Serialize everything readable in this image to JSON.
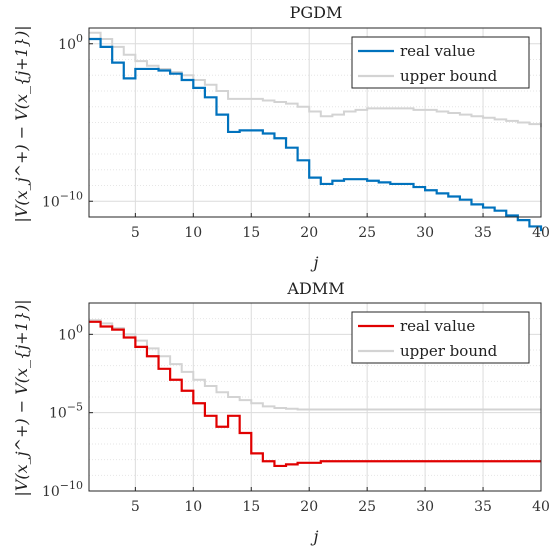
{
  "chart_data": [
    {
      "type": "line",
      "title": "PGDM",
      "xlabel": "j",
      "ylabel": "|V(x_j^+) − V(x_{j+1})|",
      "yscale": "log",
      "xlim": [
        1,
        40
      ],
      "ylim_log10": [
        -11,
        1
      ],
      "x_ticks": [
        5,
        10,
        15,
        20,
        25,
        30,
        35,
        40
      ],
      "y_ticks": [
        {
          "exp": 0,
          "label": "10",
          "sup": "0"
        },
        {
          "exp": -10,
          "label": "10",
          "sup": "−10"
        }
      ],
      "grid": true,
      "legend_position": "top-right",
      "series": [
        {
          "name": "real value",
          "color": "#0072BD",
          "step": true,
          "x": [
            1,
            2,
            3,
            4,
            5,
            6,
            7,
            8,
            9,
            10,
            11,
            12,
            13,
            14,
            15,
            16,
            17,
            18,
            19,
            20,
            21,
            22,
            23,
            24,
            25,
            26,
            27,
            28,
            29,
            30,
            31,
            32,
            33,
            34,
            35,
            36,
            37,
            38,
            39,
            40
          ],
          "log10_y": [
            0.3,
            -0.2,
            -1.2,
            -2.2,
            -1.6,
            -1.6,
            -1.7,
            -1.9,
            -2.3,
            -2.8,
            -3.4,
            -4.5,
            -5.6,
            -5.5,
            -5.5,
            -5.7,
            -6.0,
            -6.6,
            -7.4,
            -8.5,
            -8.9,
            -8.7,
            -8.6,
            -8.6,
            -8.7,
            -8.8,
            -8.9,
            -8.9,
            -9.1,
            -9.3,
            -9.5,
            -9.7,
            -9.9,
            -10.2,
            -10.4,
            -10.6,
            -10.9,
            -11.2,
            -11.6,
            -11.9
          ]
        },
        {
          "name": "upper bound",
          "color": "#D3D3D3",
          "step": true,
          "x": [
            1,
            2,
            3,
            4,
            5,
            6,
            7,
            8,
            9,
            10,
            11,
            12,
            13,
            14,
            15,
            16,
            17,
            18,
            19,
            20,
            21,
            22,
            23,
            24,
            25,
            26,
            27,
            28,
            29,
            30,
            31,
            32,
            33,
            34,
            35,
            36,
            37,
            38,
            39,
            40
          ],
          "log10_y": [
            0.7,
            0.3,
            -0.2,
            -0.7,
            -1.1,
            -1.4,
            -1.6,
            -1.8,
            -2.0,
            -2.3,
            -2.6,
            -3.0,
            -3.5,
            -3.5,
            -3.5,
            -3.6,
            -3.7,
            -3.8,
            -4.0,
            -4.3,
            -4.6,
            -4.5,
            -4.3,
            -4.2,
            -4.1,
            -4.1,
            -4.1,
            -4.1,
            -4.2,
            -4.2,
            -4.3,
            -4.4,
            -4.5,
            -4.6,
            -4.7,
            -4.8,
            -4.9,
            -5.0,
            -5.1,
            -5.3
          ]
        }
      ]
    },
    {
      "type": "line",
      "title": "ADMM",
      "xlabel": "j",
      "ylabel": "|V(x_j^+) − V(x_{j+1})|",
      "yscale": "log",
      "xlim": [
        1,
        40
      ],
      "ylim_log10": [
        -10,
        2
      ],
      "x_ticks": [
        5,
        10,
        15,
        20,
        25,
        30,
        35,
        40
      ],
      "y_ticks": [
        {
          "exp": 0,
          "label": "10",
          "sup": "0"
        },
        {
          "exp": -5,
          "label": "10",
          "sup": "−5"
        },
        {
          "exp": -10,
          "label": "10",
          "sup": "−10"
        }
      ],
      "grid": true,
      "legend_position": "top-right",
      "series": [
        {
          "name": "real value",
          "color": "#E00000",
          "step": true,
          "x": [
            1,
            2,
            3,
            4,
            5,
            6,
            7,
            8,
            9,
            10,
            11,
            12,
            13,
            14,
            15,
            16,
            17,
            18,
            19,
            20,
            21,
            22,
            23,
            24,
            25,
            26,
            27,
            28,
            29,
            30,
            31,
            32,
            33,
            34,
            35,
            36,
            37,
            38,
            39,
            40
          ],
          "log10_y": [
            0.8,
            0.5,
            0.3,
            -0.2,
            -0.8,
            -1.4,
            -2.2,
            -2.9,
            -3.6,
            -4.4,
            -5.2,
            -5.9,
            -5.2,
            -6.3,
            -7.6,
            -8.1,
            -8.4,
            -8.3,
            -8.2,
            -8.2,
            -8.1,
            -8.1,
            -8.1,
            -8.1,
            -8.1,
            -8.1,
            -8.1,
            -8.1,
            -8.1,
            -8.1,
            -8.1,
            -8.1,
            -8.1,
            -8.1,
            -8.1,
            -8.1,
            -8.1,
            -8.1,
            -8.1,
            -8.1
          ]
        },
        {
          "name": "upper bound",
          "color": "#D3D3D3",
          "step": true,
          "x": [
            1,
            2,
            3,
            4,
            5,
            6,
            7,
            8,
            9,
            10,
            11,
            12,
            13,
            14,
            15,
            16,
            17,
            18,
            19,
            20,
            21,
            22,
            23,
            24,
            25,
            26,
            27,
            28,
            29,
            30,
            31,
            32,
            33,
            34,
            35,
            36,
            37,
            38,
            39,
            40
          ],
          "log10_y": [
            0.9,
            0.7,
            0.4,
            0.0,
            -0.4,
            -0.9,
            -1.4,
            -1.9,
            -2.4,
            -2.9,
            -3.3,
            -3.7,
            -4.0,
            -4.2,
            -4.4,
            -4.6,
            -4.7,
            -4.75,
            -4.8,
            -4.8,
            -4.8,
            -4.8,
            -4.8,
            -4.8,
            -4.8,
            -4.8,
            -4.8,
            -4.8,
            -4.8,
            -4.8,
            -4.8,
            -4.8,
            -4.8,
            -4.8,
            -4.8,
            -4.8,
            -4.8,
            -4.8,
            -4.8,
            -4.8
          ]
        }
      ]
    }
  ]
}
